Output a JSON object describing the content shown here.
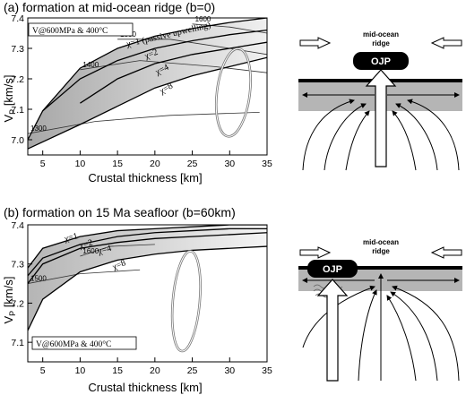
{
  "chart_data": [
    {
      "type": "line",
      "title": "(a) formation at mid-ocean ridge (b=0)",
      "xlabel": "Crustal thickness [km]",
      "ylabel": "V",
      "ylabel_sub": "P",
      "ylabel_unit": " [km/s]",
      "xlim": [
        3,
        35
      ],
      "ylim": [
        6.95,
        7.4
      ],
      "xticks": [
        5,
        10,
        15,
        20,
        25,
        30,
        35
      ],
      "yticks": [
        7.0,
        7.1,
        7.2,
        7.3,
        7.4
      ],
      "grid": false,
      "condition_label": "V@600MPa & 400°C",
      "series": [
        {
          "name": "χ=1 (passive upwelling)",
          "x": [
            3,
            5,
            10,
            15,
            20,
            25,
            30,
            35
          ],
          "y": [
            7.0,
            7.095,
            7.235,
            7.3,
            7.34,
            7.365,
            7.385,
            7.4
          ]
        },
        {
          "name": "χ=2",
          "x": [
            5,
            10,
            15,
            20,
            25,
            30,
            35
          ],
          "y": [
            7.095,
            7.2,
            7.26,
            7.3,
            7.325,
            7.345,
            7.36
          ]
        },
        {
          "name": "χ=4",
          "x": [
            10,
            15,
            20,
            25,
            30,
            35
          ],
          "y": [
            7.12,
            7.2,
            7.25,
            7.28,
            7.3,
            7.32
          ]
        },
        {
          "name": "χ=8",
          "x": [
            3,
            10,
            15,
            20,
            25,
            30,
            35
          ],
          "y": [
            6.97,
            7.05,
            7.11,
            7.17,
            7.21,
            7.24,
            7.27
          ]
        }
      ],
      "isotherms": [
        {
          "label": "1300",
          "x": [
            3,
            12,
            22,
            34
          ],
          "y": [
            7.02,
            7.06,
            7.08,
            7.09
          ]
        },
        {
          "label": "1400",
          "x": [
            10,
            18,
            28,
            35
          ],
          "y": [
            7.23,
            7.26,
            7.24,
            7.22
          ]
        },
        {
          "label": "1500",
          "x": [
            15,
            22,
            30,
            35
          ],
          "y": [
            7.33,
            7.33,
            7.3,
            7.28
          ]
        },
        {
          "label": "1600",
          "x": [
            25,
            30,
            35
          ],
          "y": [
            7.38,
            7.37,
            7.35
          ]
        }
      ],
      "ellipse": {
        "cx": 30.5,
        "cy": 7.155,
        "rx": 2.2,
        "ry": 0.145,
        "rotation_deg": 7
      }
    },
    {
      "type": "line",
      "title": "(b) formation on 15 Ma seafloor (b=60km)",
      "xlabel": "Crustal thickness [km]",
      "ylabel": "V",
      "ylabel_sub": "P",
      "ylabel_unit": " [km/s]",
      "xlim": [
        3,
        35
      ],
      "ylim": [
        7.05,
        7.4
      ],
      "xticks": [
        5,
        10,
        15,
        20,
        25,
        30,
        35
      ],
      "yticks": [
        7.1,
        7.2,
        7.3,
        7.4
      ],
      "grid": false,
      "condition_label": "V@600MPa & 400°C",
      "series": [
        {
          "name": "χ=1",
          "x": [
            3,
            5,
            10,
            15,
            20,
            25,
            30,
            35
          ],
          "y": [
            7.29,
            7.34,
            7.37,
            7.385,
            7.39,
            7.395,
            7.4,
            7.4
          ]
        },
        {
          "name": "χ=2",
          "x": [
            3,
            5,
            10,
            15,
            20,
            25,
            30,
            35
          ],
          "y": [
            7.27,
            7.315,
            7.35,
            7.37,
            7.38,
            7.385,
            7.39,
            7.39
          ]
        },
        {
          "name": "χ=4",
          "x": [
            3,
            5,
            10,
            15,
            20,
            25,
            30,
            35
          ],
          "y": [
            7.25,
            7.3,
            7.34,
            7.355,
            7.365,
            7.37,
            7.375,
            7.38
          ]
        },
        {
          "name": "χ=8",
          "x": [
            3,
            5,
            10,
            15,
            20,
            25,
            30,
            35
          ],
          "y": [
            7.13,
            7.21,
            7.28,
            7.31,
            7.325,
            7.335,
            7.34,
            7.345
          ]
        }
      ],
      "isotherms": [
        {
          "label": "1500",
          "x": [
            3,
            10,
            18
          ],
          "y": [
            7.25,
            7.275,
            7.285
          ]
        },
        {
          "label": "1600",
          "x": [
            10,
            14,
            20
          ],
          "y": [
            7.32,
            7.345,
            7.35
          ]
        }
      ],
      "ellipse": {
        "cx": 24.2,
        "cy": 7.205,
        "rx": 1.8,
        "ry": 0.128,
        "rotation_deg": 5
      }
    }
  ],
  "schematic_a": {
    "ridge_label_1": "mid-ocean",
    "ridge_label_2": "ridge",
    "plateau_label": "OJP"
  },
  "schematic_b": {
    "ridge_label_1": "mid-ocean",
    "ridge_label_2": "ridge",
    "plateau_label": "OJP"
  },
  "colors": {
    "band_dark": "#aaaaaa",
    "band_light": "#efefef",
    "mantle": "#b5b5b5",
    "plate": "#000000",
    "ellipse": "#777777"
  }
}
